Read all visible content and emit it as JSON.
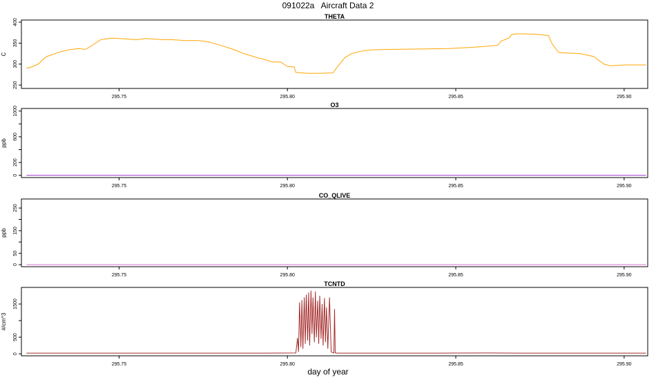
{
  "figure": {
    "title": "091022a   Aircraft Data 2",
    "xlabel": "day of year"
  },
  "chart_data": [
    {
      "type": "line",
      "title": "THETA",
      "ylabel": "C",
      "color": "#FFA500",
      "xlim": [
        295.721,
        295.907
      ],
      "ylim": [
        242,
        405
      ],
      "xticks": [
        295.75,
        295.8,
        295.85,
        295.9
      ],
      "xtick_labels": [
        "295.75",
        "295.80",
        "295.85",
        "295.90"
      ],
      "yticks": [
        250,
        300,
        350,
        400
      ],
      "ytick_labels": [
        "250",
        "300",
        "350",
        "400"
      ],
      "x": [
        295.7225,
        295.724,
        295.726,
        295.7275,
        295.7285,
        295.73,
        295.732,
        295.735,
        295.738,
        295.74,
        295.7415,
        295.7445,
        295.746,
        295.748,
        295.75,
        295.752,
        295.755,
        295.758,
        295.76,
        295.763,
        295.766,
        295.77,
        295.7735,
        295.775,
        295.7765,
        295.7775,
        295.78,
        295.784,
        295.787,
        295.79,
        295.7915,
        295.7925,
        295.7955,
        295.797,
        295.798,
        295.8,
        295.802,
        295.8025,
        295.806,
        295.81,
        295.8135,
        295.815,
        295.817,
        295.819,
        295.822,
        295.825,
        295.83,
        295.84,
        295.848,
        295.85,
        295.855,
        295.86,
        295.8625,
        295.8635,
        295.866,
        295.8665,
        295.868,
        295.87,
        295.874,
        295.8775,
        295.8785,
        295.88,
        295.8805,
        295.8815,
        295.887,
        295.891,
        295.894,
        295.896,
        295.9,
        295.9065
      ],
      "y": [
        290,
        293,
        300,
        312,
        318,
        322,
        328,
        334,
        337,
        335,
        342,
        358,
        360,
        362,
        361,
        360,
        358,
        361,
        360,
        358,
        358,
        356,
        356,
        355,
        353,
        351,
        345,
        335,
        325,
        318,
        314,
        313,
        305,
        305,
        305,
        294,
        293,
        280,
        278,
        278,
        279,
        295,
        315,
        325,
        331,
        334,
        335,
        336,
        337,
        338,
        340,
        343,
        345,
        355,
        363,
        370,
        372,
        372,
        371,
        368,
        350,
        333,
        328,
        327,
        325,
        318,
        300,
        296,
        298,
        298
      ]
    },
    {
      "type": "line",
      "title": "O3",
      "ylabel": "ppb",
      "color": "#9932CC",
      "xlim": [
        295.721,
        295.907
      ],
      "ylim": [
        -35,
        1040
      ],
      "xticks": [
        295.75,
        295.8,
        295.85,
        295.9
      ],
      "xtick_labels": [
        "295.75",
        "295.80",
        "295.85",
        "295.90"
      ],
      "yticks": [
        0,
        200,
        400,
        600,
        800,
        1000
      ],
      "ytick_labels": [
        "0",
        "200",
        "",
        "600",
        "",
        "1000"
      ],
      "x": [
        295.7225,
        295.9065
      ],
      "y": [
        0,
        0
      ]
    },
    {
      "type": "line",
      "title": "CO_QLIVE",
      "ylabel": "ppb",
      "color": "#DA70D6",
      "xlim": [
        295.721,
        295.907
      ],
      "ylim": [
        -9,
        290
      ],
      "xticks": [
        295.75,
        295.8,
        295.85,
        295.9
      ],
      "xtick_labels": [
        "295.75",
        "295.80",
        "295.85",
        "295.90"
      ],
      "yticks": [
        0,
        50,
        100,
        150,
        200,
        250
      ],
      "ytick_labels": [
        "0",
        "50",
        "",
        "150",
        "",
        "250"
      ],
      "x": [
        295.7225,
        295.9065
      ],
      "y": [
        0,
        0
      ]
    },
    {
      "type": "line",
      "title": "TCNTD",
      "ylabel": "#/cm^3",
      "color": "#A52A2A",
      "xlim": [
        295.721,
        295.907
      ],
      "ylim": [
        -60,
        2000
      ],
      "xticks": [
        295.75,
        295.8,
        295.85,
        295.9
      ],
      "xtick_labels": [
        "295.75",
        "295.80",
        "295.85",
        "295.90"
      ],
      "yticks": [
        0,
        500,
        1000,
        1500
      ],
      "ytick_labels": [
        "0",
        "500",
        "",
        "1500"
      ],
      "x": [
        295.7225,
        295.7775,
        295.7915,
        295.8025,
        295.803,
        295.8033,
        295.8036,
        295.804,
        295.8043,
        295.8046,
        295.805,
        295.8053,
        295.8056,
        295.806,
        295.8063,
        295.8066,
        295.807,
        295.8073,
        295.8076,
        295.808,
        295.8083,
        295.8086,
        295.809,
        295.8093,
        295.8096,
        295.81,
        295.8103,
        295.8106,
        295.811,
        295.8113,
        295.8116,
        295.812,
        295.8125,
        295.813,
        295.8138,
        295.814,
        295.8142,
        295.8145,
        295.8148,
        295.82,
        295.84,
        295.85,
        295.86,
        295.8685,
        295.8735,
        295.9065
      ],
      "y": [
        20,
        20,
        20,
        25,
        480,
        60,
        1550,
        200,
        1620,
        150,
        1700,
        300,
        1780,
        400,
        1850,
        250,
        1900,
        600,
        1700,
        350,
        1880,
        500,
        1600,
        300,
        1750,
        450,
        1500,
        250,
        1680,
        350,
        1400,
        150,
        1700,
        60,
        25,
        1350,
        30,
        25,
        20,
        20,
        20,
        22,
        25,
        20,
        20,
        20
      ]
    }
  ]
}
